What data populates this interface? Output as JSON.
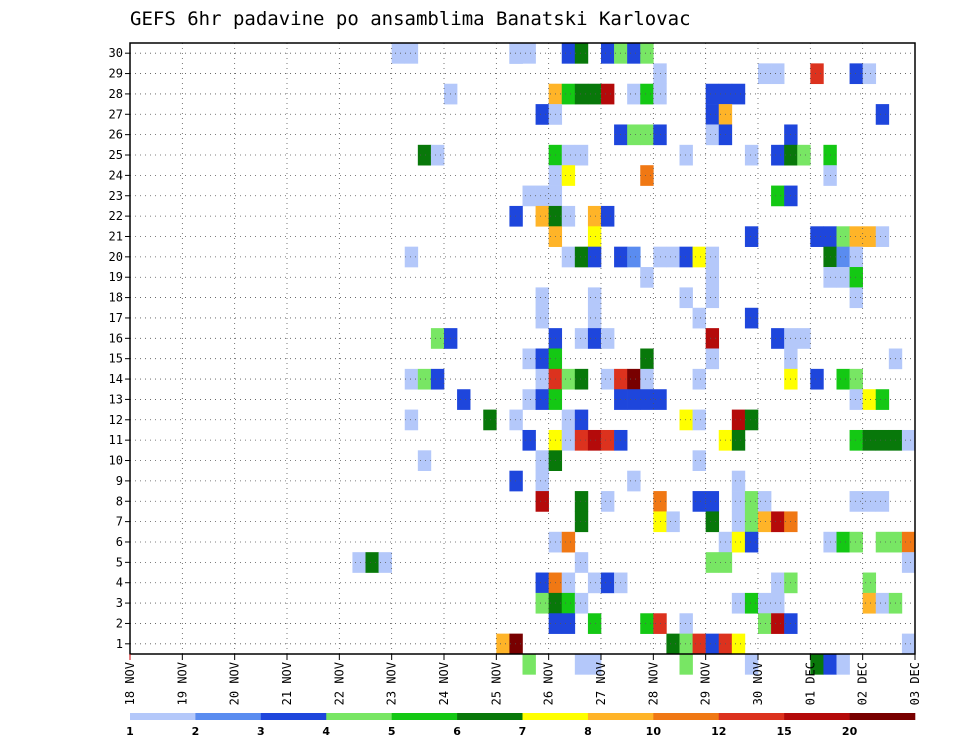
{
  "chart_data": {
    "type": "heatmap",
    "title": "GEFS 6hr padavine po ansamblima Banatski Karlovac",
    "x_tick_labels": [
      "18 NOV",
      "19 NOV",
      "20 NOV",
      "21 NOV",
      "22 NOV",
      "23 NOV",
      "24 NOV",
      "25 NOV",
      "26 NOV",
      "27 NOV",
      "28 NOV",
      "29 NOV",
      "30 NOV",
      "01 DEC",
      "02 DEC",
      "03 DEC"
    ],
    "y_tick_labels": [
      "1",
      "2",
      "3",
      "4",
      "5",
      "6",
      "7",
      "8",
      "9",
      "10",
      "11",
      "12",
      "13",
      "14",
      "15",
      "16",
      "17",
      "18",
      "19",
      "20",
      "21",
      "22",
      "23",
      "24",
      "25",
      "26",
      "27",
      "28",
      "29",
      "30"
    ],
    "xlim": [
      0,
      60
    ],
    "ylim": [
      0,
      30
    ],
    "grid": true,
    "colorbar": {
      "labels": [
        "1",
        "2",
        "3",
        "4",
        "5",
        "6",
        "7",
        "8",
        "10",
        "12",
        "15",
        "20"
      ],
      "colors": [
        "#b4c8fa",
        "#5a8cf0",
        "#1e46dc",
        "#78e664",
        "#14c814",
        "#08780a",
        "#ffff00",
        "#ffb428",
        "#f07814",
        "#dc321e",
        "#b40a0a",
        "#780000"
      ]
    },
    "cells": [
      [
        20,
        29,
        0
      ],
      [
        21,
        29,
        0
      ],
      [
        29,
        29,
        1
      ],
      [
        29,
        29,
        0
      ],
      [
        30,
        29,
        0
      ],
      [
        33,
        29,
        2
      ],
      [
        34,
        29,
        5
      ],
      [
        36,
        29,
        2
      ],
      [
        37,
        29,
        3
      ],
      [
        38,
        29,
        2
      ],
      [
        39,
        29,
        3
      ],
      [
        40,
        28,
        0
      ],
      [
        48,
        28,
        0
      ],
      [
        49,
        28,
        0
      ],
      [
        52,
        28,
        9
      ],
      [
        55,
        28,
        2
      ],
      [
        56,
        28,
        0
      ],
      [
        24,
        27,
        0
      ],
      [
        32,
        27,
        7
      ],
      [
        33,
        27,
        4
      ],
      [
        34,
        27,
        5
      ],
      [
        35,
        27,
        5
      ],
      [
        36,
        27,
        10
      ],
      [
        38,
        27,
        0
      ],
      [
        39,
        27,
        4
      ],
      [
        40,
        27,
        0
      ],
      [
        44,
        27,
        2
      ],
      [
        45,
        27,
        2
      ],
      [
        46,
        27,
        2
      ],
      [
        31,
        26,
        2
      ],
      [
        32,
        26,
        0
      ],
      [
        44,
        26,
        2
      ],
      [
        45,
        26,
        7
      ],
      [
        57,
        26,
        2
      ],
      [
        37,
        25,
        2
      ],
      [
        38,
        25,
        3
      ],
      [
        39,
        25,
        3
      ],
      [
        40,
        25,
        2
      ],
      [
        44,
        25,
        0
      ],
      [
        45,
        25,
        2
      ],
      [
        50,
        25,
        2
      ],
      [
        22,
        24,
        5
      ],
      [
        23,
        24,
        0
      ],
      [
        32,
        24,
        4
      ],
      [
        33,
        24,
        0
      ],
      [
        34,
        24,
        0
      ],
      [
        42,
        24,
        0
      ],
      [
        47,
        24,
        0
      ],
      [
        49,
        24,
        2
      ],
      [
        50,
        24,
        5
      ],
      [
        51,
        24,
        3
      ],
      [
        53,
        24,
        4
      ],
      [
        32,
        23,
        0
      ],
      [
        33,
        23,
        6
      ],
      [
        39,
        23,
        8
      ],
      [
        53,
        23,
        0
      ],
      [
        30,
        22,
        0
      ],
      [
        31,
        22,
        0
      ],
      [
        32,
        22,
        0
      ],
      [
        49,
        22,
        4
      ],
      [
        50,
        22,
        2
      ],
      [
        29,
        21,
        2
      ],
      [
        31,
        21,
        7
      ],
      [
        32,
        21,
        5
      ],
      [
        33,
        21,
        0
      ],
      [
        35,
        21,
        7
      ],
      [
        36,
        21,
        2
      ],
      [
        32,
        20,
        7
      ],
      [
        35,
        20,
        6
      ],
      [
        47,
        20,
        2
      ],
      [
        52,
        20,
        2
      ],
      [
        53,
        20,
        2
      ],
      [
        54,
        20,
        3
      ],
      [
        55,
        20,
        7
      ],
      [
        56,
        20,
        7
      ],
      [
        57,
        20,
        0
      ],
      [
        21,
        19,
        0
      ],
      [
        33,
        19,
        0
      ],
      [
        34,
        19,
        5
      ],
      [
        35,
        19,
        2
      ],
      [
        37,
        19,
        2
      ],
      [
        38,
        19,
        1
      ],
      [
        40,
        19,
        0
      ],
      [
        41,
        19,
        0
      ],
      [
        42,
        19,
        2
      ],
      [
        43,
        19,
        6
      ],
      [
        44,
        19,
        0
      ],
      [
        53,
        19,
        5
      ],
      [
        54,
        19,
        1
      ],
      [
        55,
        19,
        0
      ],
      [
        39,
        18,
        0
      ],
      [
        44,
        18,
        0
      ],
      [
        53,
        18,
        0
      ],
      [
        54,
        18,
        0
      ],
      [
        55,
        18,
        4
      ],
      [
        31,
        17,
        0
      ],
      [
        35,
        17,
        0
      ],
      [
        42,
        17,
        0
      ],
      [
        44,
        17,
        0
      ],
      [
        55,
        17,
        0
      ],
      [
        31,
        16,
        0
      ],
      [
        35,
        16,
        0
      ],
      [
        47,
        16,
        2
      ],
      [
        43,
        16,
        0
      ],
      [
        23,
        15,
        3
      ],
      [
        24,
        15,
        2
      ],
      [
        32,
        15,
        2
      ],
      [
        34,
        15,
        0
      ],
      [
        35,
        15,
        2
      ],
      [
        36,
        15,
        0
      ],
      [
        44,
        15,
        10
      ],
      [
        49,
        15,
        2
      ],
      [
        50,
        15,
        0
      ],
      [
        51,
        15,
        0
      ],
      [
        30,
        14,
        0
      ],
      [
        31,
        14,
        2
      ],
      [
        32,
        14,
        4
      ],
      [
        39,
        14,
        5
      ],
      [
        44,
        14,
        0
      ],
      [
        50,
        14,
        0
      ],
      [
        58,
        14,
        0
      ],
      [
        21,
        13,
        0
      ],
      [
        22,
        13,
        3
      ],
      [
        23,
        13,
        2
      ],
      [
        31,
        13,
        0
      ],
      [
        32,
        13,
        9
      ],
      [
        33,
        13,
        3
      ],
      [
        34,
        13,
        5
      ],
      [
        36,
        13,
        0
      ],
      [
        37,
        13,
        9
      ],
      [
        38,
        13,
        11
      ],
      [
        39,
        13,
        0
      ],
      [
        43,
        13,
        0
      ],
      [
        50,
        13,
        6
      ],
      [
        52,
        13,
        2
      ],
      [
        54,
        13,
        4
      ],
      [
        55,
        13,
        3
      ],
      [
        25,
        12,
        2
      ],
      [
        30,
        12,
        0
      ],
      [
        31,
        12,
        2
      ],
      [
        32,
        12,
        4
      ],
      [
        37,
        12,
        2
      ],
      [
        38,
        12,
        2
      ],
      [
        39,
        12,
        2
      ],
      [
        40,
        12,
        2
      ],
      [
        55,
        12,
        0
      ],
      [
        56,
        12,
        6
      ],
      [
        57,
        12,
        4
      ],
      [
        21,
        11,
        0
      ],
      [
        27,
        11,
        5
      ],
      [
        29,
        11,
        0
      ],
      [
        33,
        11,
        0
      ],
      [
        34,
        11,
        2
      ],
      [
        42,
        11,
        6
      ],
      [
        43,
        11,
        0
      ],
      [
        46,
        11,
        10
      ],
      [
        47,
        11,
        5
      ],
      [
        30,
        10,
        2
      ],
      [
        32,
        10,
        6
      ],
      [
        33,
        10,
        0
      ],
      [
        34,
        10,
        9
      ],
      [
        35,
        10,
        10
      ],
      [
        36,
        10,
        9
      ],
      [
        37,
        10,
        2
      ],
      [
        45,
        10,
        6
      ],
      [
        46,
        10,
        5
      ],
      [
        55,
        10,
        4
      ],
      [
        56,
        10,
        5
      ],
      [
        57,
        10,
        5
      ],
      [
        58,
        10,
        5
      ],
      [
        59,
        10,
        0
      ],
      [
        22,
        9,
        0
      ],
      [
        31,
        9,
        0
      ],
      [
        32,
        9,
        5
      ],
      [
        43,
        9,
        0
      ],
      [
        29,
        8,
        2
      ],
      [
        31,
        8,
        0
      ],
      [
        38,
        8,
        0
      ],
      [
        46,
        8,
        0
      ],
      [
        31,
        7,
        10
      ],
      [
        34,
        7,
        5
      ],
      [
        36,
        7,
        0
      ],
      [
        40,
        7,
        8
      ],
      [
        43,
        7,
        2
      ],
      [
        44,
        7,
        2
      ],
      [
        46,
        7,
        0
      ],
      [
        47,
        7,
        3
      ],
      [
        48,
        7,
        0
      ],
      [
        55,
        7,
        0
      ],
      [
        56,
        7,
        0
      ],
      [
        57,
        7,
        0
      ],
      [
        34,
        6,
        5
      ],
      [
        40,
        6,
        6
      ],
      [
        41,
        6,
        0
      ],
      [
        44,
        6,
        5
      ],
      [
        46,
        6,
        0
      ],
      [
        47,
        6,
        3
      ],
      [
        48,
        6,
        7
      ],
      [
        49,
        6,
        10
      ],
      [
        50,
        6,
        8
      ],
      [
        32,
        5,
        0
      ],
      [
        33,
        5,
        8
      ],
      [
        45,
        5,
        0
      ],
      [
        46,
        5,
        6
      ],
      [
        47,
        5,
        2
      ],
      [
        53,
        5,
        0
      ],
      [
        54,
        5,
        4
      ],
      [
        55,
        5,
        3
      ],
      [
        57,
        5,
        3
      ],
      [
        58,
        5,
        3
      ],
      [
        59,
        5,
        8
      ],
      [
        17,
        4,
        0
      ],
      [
        18,
        4,
        5
      ],
      [
        19,
        4,
        0
      ],
      [
        34,
        4,
        0
      ],
      [
        44,
        4,
        3
      ],
      [
        45,
        4,
        3
      ],
      [
        59,
        4,
        0
      ],
      [
        31,
        3,
        2
      ],
      [
        32,
        3,
        8
      ],
      [
        33,
        3,
        0
      ],
      [
        35,
        3,
        0
      ],
      [
        36,
        3,
        2
      ],
      [
        37,
        3,
        0
      ],
      [
        49,
        3,
        0
      ],
      [
        50,
        3,
        3
      ],
      [
        56,
        3,
        3
      ],
      [
        31,
        2,
        3
      ],
      [
        32,
        2,
        5
      ],
      [
        33,
        2,
        4
      ],
      [
        34,
        2,
        0
      ],
      [
        46,
        2,
        0
      ],
      [
        47,
        2,
        4
      ],
      [
        48,
        2,
        0
      ],
      [
        49,
        2,
        0
      ],
      [
        56,
        2,
        7
      ],
      [
        57,
        2,
        0
      ],
      [
        58,
        2,
        3
      ],
      [
        32,
        1,
        2
      ],
      [
        33,
        1,
        2
      ],
      [
        35,
        1,
        4
      ],
      [
        39,
        1,
        4
      ],
      [
        40,
        1,
        9
      ],
      [
        42,
        1,
        0
      ],
      [
        48,
        1,
        3
      ],
      [
        49,
        1,
        10
      ],
      [
        50,
        1,
        2
      ],
      [
        28,
        0,
        7
      ],
      [
        29,
        0,
        11
      ],
      [
        41,
        0,
        5
      ],
      [
        42,
        0,
        3
      ],
      [
        43,
        0,
        9
      ],
      [
        44,
        0,
        2
      ],
      [
        45,
        0,
        9
      ],
      [
        46,
        0,
        6
      ],
      [
        59,
        0,
        0
      ],
      [
        30,
        -1,
        3
      ],
      [
        34,
        -1,
        0
      ],
      [
        35,
        -1,
        0
      ],
      [
        42,
        -1,
        3
      ],
      [
        47,
        -1,
        0
      ],
      [
        52,
        -1,
        5
      ],
      [
        53,
        -1,
        2
      ],
      [
        54,
        -1,
        0
      ]
    ]
  }
}
